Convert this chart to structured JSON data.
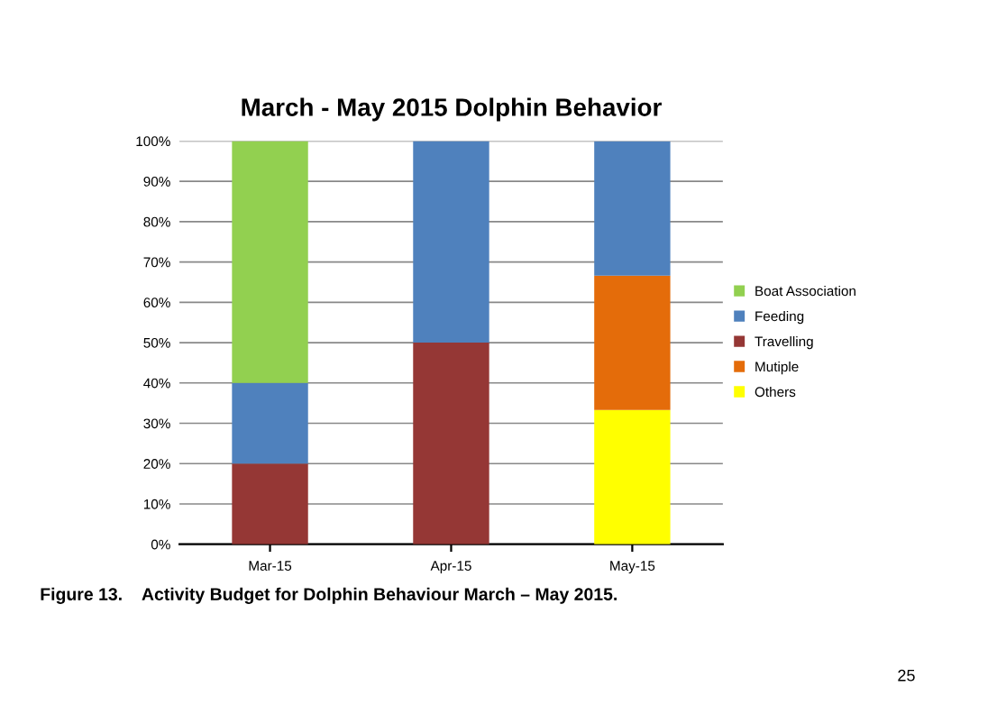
{
  "chart_data": {
    "type": "bar",
    "stacked": true,
    "title": "March - May 2015 Dolphin Behavior",
    "categories": [
      "Mar-15",
      "Apr-15",
      "May-15"
    ],
    "series": [
      {
        "name": "Others",
        "color": "#ffff00",
        "values": [
          0,
          0,
          33.3
        ]
      },
      {
        "name": "Mutiple",
        "color": "#e46c0a",
        "values": [
          0,
          0,
          33.3
        ]
      },
      {
        "name": "Travelling",
        "color": "#953735",
        "values": [
          20,
          50,
          0
        ]
      },
      {
        "name": "Feeding",
        "color": "#4f81bd",
        "values": [
          20,
          50,
          33.3
        ]
      },
      {
        "name": "Boat Association",
        "color": "#92d050",
        "values": [
          60,
          0,
          0
        ]
      }
    ],
    "ylim": [
      0,
      100
    ],
    "yticks": [
      {
        "value": 0,
        "label": "0%"
      },
      {
        "value": 10,
        "label": "10%"
      },
      {
        "value": 20,
        "label": "20%"
      },
      {
        "value": 30,
        "label": "30%"
      },
      {
        "value": 40,
        "label": "40%"
      },
      {
        "value": 50,
        "label": "50%"
      },
      {
        "value": 60,
        "label": "60%"
      },
      {
        "value": 70,
        "label": "70%"
      },
      {
        "value": 80,
        "label": "80%"
      },
      {
        "value": 90,
        "label": "90%"
      },
      {
        "value": 100,
        "label": "100%"
      }
    ],
    "grid": "y",
    "legend": "right",
    "annotations": [
      "Figure 13.    Activity Budget for Dolphin Behaviour March – May 2015.",
      "25"
    ]
  }
}
